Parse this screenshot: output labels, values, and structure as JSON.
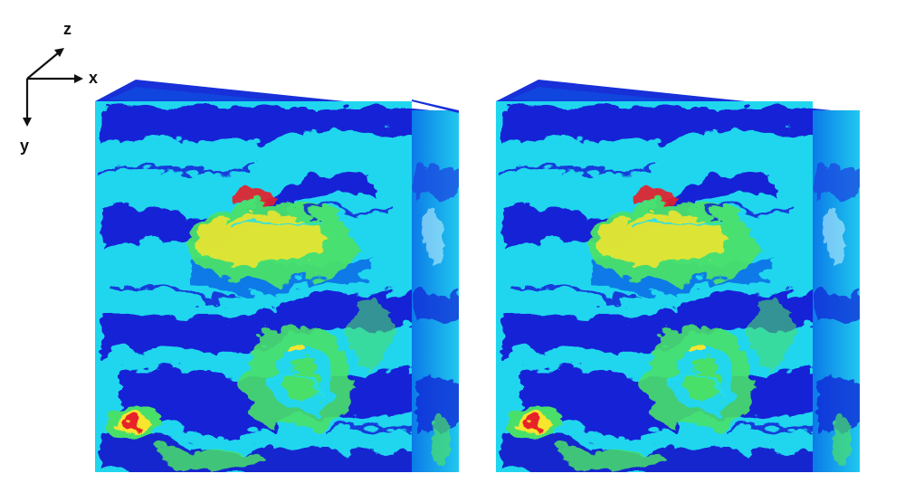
{
  "axes": {
    "x_label": "x",
    "y_label": "y",
    "z_label": "z"
  },
  "colors": {
    "background": "#ffffff",
    "dark_blue": "#1421d6",
    "mid_blue": "#0b7ae8",
    "cyan": "#20e0f0",
    "green": "#49e06a",
    "yellow": "#f7e52e",
    "red": "#e8202a",
    "top_face": "#1730d8"
  },
  "panels": [
    {
      "name": "left-volume",
      "description_visible": false
    },
    {
      "name": "right-volume",
      "description_visible": false
    }
  ]
}
